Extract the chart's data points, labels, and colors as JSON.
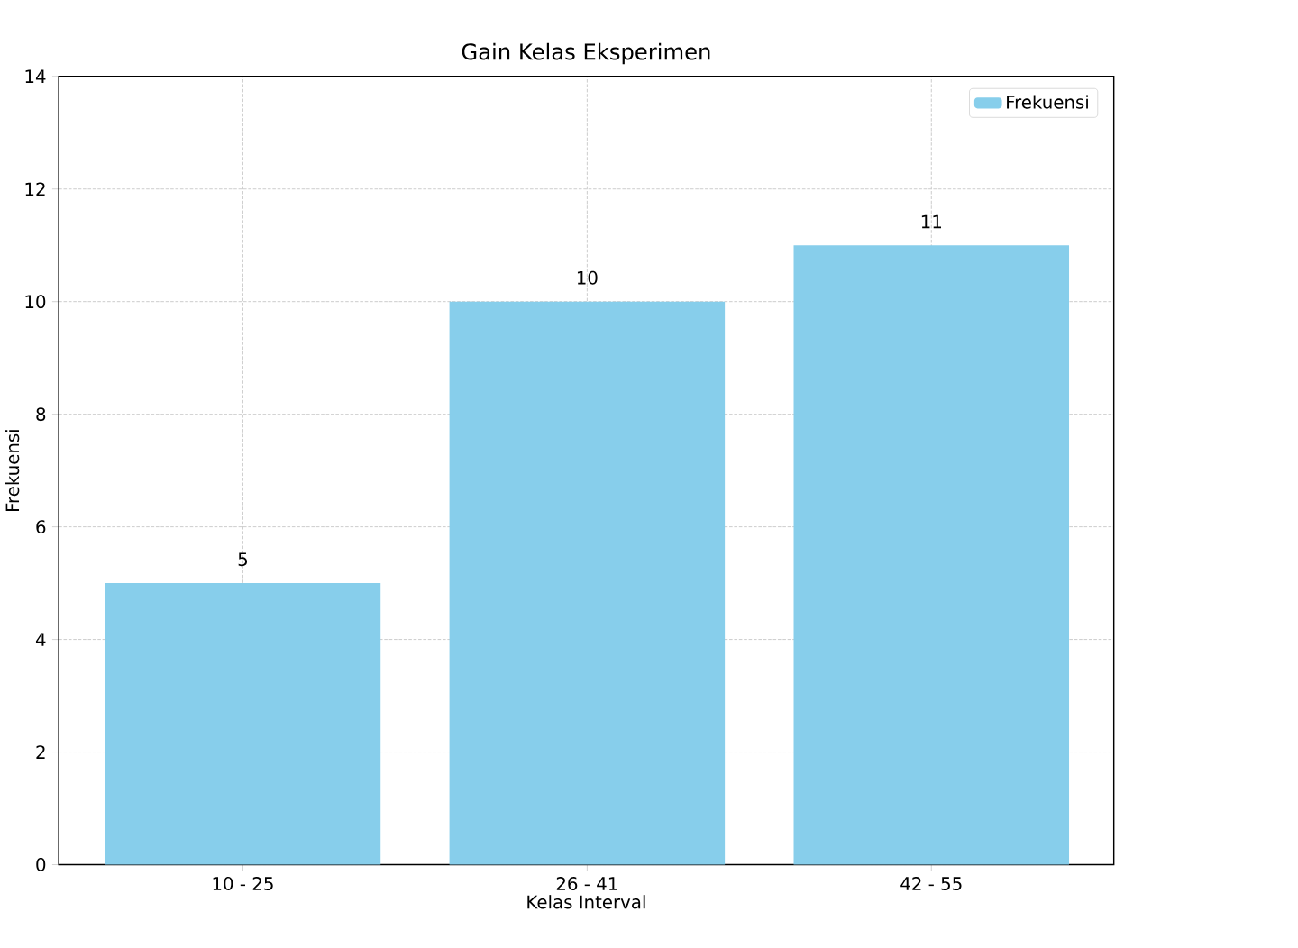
{
  "chart_data": {
    "type": "bar",
    "title": "Gain Kelas Eksperimen",
    "xlabel": "Kelas Interval",
    "ylabel": "Frekuensi",
    "categories": [
      "10 - 25",
      "26 - 41",
      "42 - 55"
    ],
    "series": [
      {
        "name": "Frekuensi",
        "color": "#87ceeb",
        "values": [
          5,
          10,
          11
        ]
      }
    ],
    "ylim": [
      0,
      14
    ],
    "yticks": [
      0,
      2,
      4,
      6,
      8,
      10,
      12,
      14
    ],
    "grid": true,
    "legend": "top right",
    "data_labels": true
  }
}
